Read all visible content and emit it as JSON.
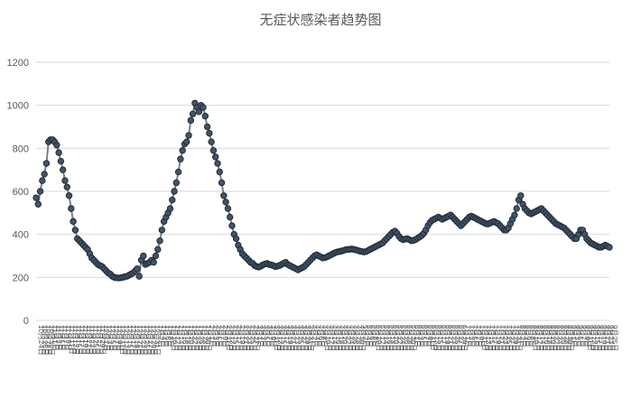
{
  "chart_data": {
    "type": "line",
    "title": "无症状感染者趋势图",
    "xlabel": "",
    "ylabel": "",
    "ylim": [
      0,
      1200
    ],
    "yticks": [
      0,
      200,
      400,
      600,
      800,
      1000,
      1200
    ],
    "grid": true,
    "legend": "none",
    "colors": {
      "line": "#808080",
      "marker": "#44546a",
      "grid": "#d9d9d9",
      "text": "#595959"
    },
    "series": [
      {
        "values": [
          570,
          540,
          600,
          650,
          680,
          730,
          830,
          840,
          840,
          830,
          815,
          780,
          740,
          700,
          650,
          620,
          580,
          520,
          460,
          420,
          380,
          370,
          360,
          350,
          340,
          330,
          310,
          290,
          280,
          270,
          260,
          255,
          250,
          240,
          230,
          220,
          215,
          205,
          200,
          198,
          197,
          198,
          200,
          203,
          205,
          210,
          215,
          220,
          230,
          240,
          205,
          280,
          300,
          260,
          265,
          270,
          280,
          270,
          300,
          330,
          370,
          420,
          460,
          480,
          500,
          520,
          560,
          600,
          640,
          690,
          750,
          790,
          820,
          830,
          860,
          930,
          960,
          1010,
          990,
          970,
          1000,
          990,
          950,
          900,
          870,
          830,
          790,
          760,
          730,
          690,
          640,
          580,
          550,
          520,
          480,
          440,
          400,
          380,
          350,
          330,
          310,
          300,
          290,
          280,
          270,
          265,
          255,
          250,
          248,
          252,
          258,
          262,
          265,
          260,
          258,
          255,
          250,
          252,
          255,
          260,
          265,
          270,
          260,
          255,
          250,
          245,
          240,
          235,
          240,
          245,
          250,
          260,
          270,
          280,
          290,
          300,
          305,
          300,
          295,
          290,
          292,
          295,
          300,
          305,
          310,
          315,
          318,
          320,
          322,
          325,
          328,
          330,
          330,
          332,
          330,
          328,
          325,
          322,
          320,
          318,
          320,
          325,
          330,
          335,
          340,
          345,
          350,
          355,
          360,
          370,
          380,
          390,
          400,
          410,
          415,
          405,
          390,
          380,
          375,
          378,
          380,
          375,
          370,
          372,
          376,
          382,
          388,
          395,
          405,
          420,
          440,
          455,
          465,
          470,
          475,
          480,
          475,
          470,
          475,
          480,
          485,
          490,
          480,
          470,
          460,
          450,
          440,
          450,
          460,
          470,
          480,
          485,
          480,
          475,
          470,
          465,
          460,
          455,
          450,
          448,
          452,
          456,
          460,
          455,
          450,
          440,
          430,
          420,
          420,
          430,
          450,
          470,
          490,
          520,
          560,
          580,
          540,
          520,
          510,
          500,
          495,
          500,
          505,
          510,
          515,
          520,
          510,
          500,
          490,
          480,
          470,
          460,
          450,
          445,
          440,
          435,
          430,
          420,
          410,
          400,
          390,
          380,
          380,
          400,
          420,
          420,
          400,
          380,
          370,
          360,
          355,
          350,
          345,
          340,
          340,
          345,
          350,
          345,
          340
        ]
      }
    ],
    "x_tick_labels": [
      "10月24日",
      "10月26日",
      "10月28日",
      "10月30日",
      "11月1日",
      "11月3日",
      "11月5日",
      "11月7日",
      "11月9日",
      "11月11日",
      "11月13日",
      "11月15日",
      "11月17日",
      "11月19日",
      "11月21日",
      "11月23日",
      "11月25日",
      "11月27日",
      "11月29日",
      "12月1日",
      "12月3日",
      "12月5日",
      "12月7日",
      "12月9日",
      "12月11日",
      "12月13日",
      "12月15日",
      "12月17日",
      "12月19日",
      "12月21日",
      "12月23日",
      "12月25日",
      "12月27日",
      "12月29日",
      "12月31日",
      "1月2日",
      "1月4日",
      "1月6日",
      "1月8日",
      "1月10日",
      "1月12日",
      "1月14日",
      "1月16日",
      "1月18日",
      "1月20日",
      "1月22日",
      "1月24日",
      "1月26日",
      "1月28日",
      "1月30日",
      "2月1日",
      "2月3日",
      "2月5日",
      "2月7日",
      "2月9日",
      "2月11日",
      "2月13日",
      "2月15日",
      "2月17日",
      "2月19日",
      "2月21日",
      "2月23日",
      "2月25日",
      "2月27日",
      "3月1日",
      "3月3日",
      "3月5日",
      "3月7日",
      "3月9日",
      "3月11日",
      "3月13日",
      "3月15日",
      "3月17日",
      "3月19日",
      "3月21日",
      "3月23日",
      "3月25日",
      "3月27日",
      "3月29日",
      "3月31日",
      "4月2日",
      "4月4日",
      "4月6日",
      "4月8日",
      "4月10日",
      "4月12日",
      "4月14日",
      "4月16日",
      "4月18日",
      "4月20日",
      "4月22日",
      "4月24日",
      "4月26日",
      "4月28日",
      "4月30日",
      "5月2日",
      "5月4日",
      "5月6日",
      "5月8日",
      "5月10日",
      "5月12日",
      "5月14日",
      "5月16日",
      "5月18日",
      "5月20日",
      "5月22日",
      "5月24日",
      "5月26日",
      "5月28日",
      "5月30日",
      "6月1日",
      "6月3日",
      "6月5日",
      "6月7日",
      "6月9日",
      "6月11日",
      "6月13日",
      "6月15日",
      "6月17日",
      "6月19日",
      "6月21日",
      "6月23日",
      "6月25日",
      "6月27日",
      "6月29日",
      "7月1日",
      "7月3日",
      "7月5日",
      "7月7日",
      "7月9日",
      "7月11日",
      "7月13日",
      "7月15日",
      "7月17日",
      "7月19日",
      "7月21日",
      "7月23日",
      "7月25日",
      "7月27日",
      "7月29日",
      "7月31日",
      "8月2日",
      "8月4日",
      "8月6日",
      "8月8日",
      "8月10日",
      "8月12日",
      "8月14日",
      "8月16日",
      "8月18日",
      "8月20日",
      "8月22日",
      "8月24日",
      "8月26日",
      "8月28日",
      "8月30日",
      "9月1日",
      "9月3日",
      "9月5日",
      "9月7日",
      "9月9日",
      "9月11日",
      "9月13日",
      "9月15日",
      "9月17日",
      "9月19日",
      "9月21日",
      "9月23日",
      "9月25日"
    ]
  }
}
